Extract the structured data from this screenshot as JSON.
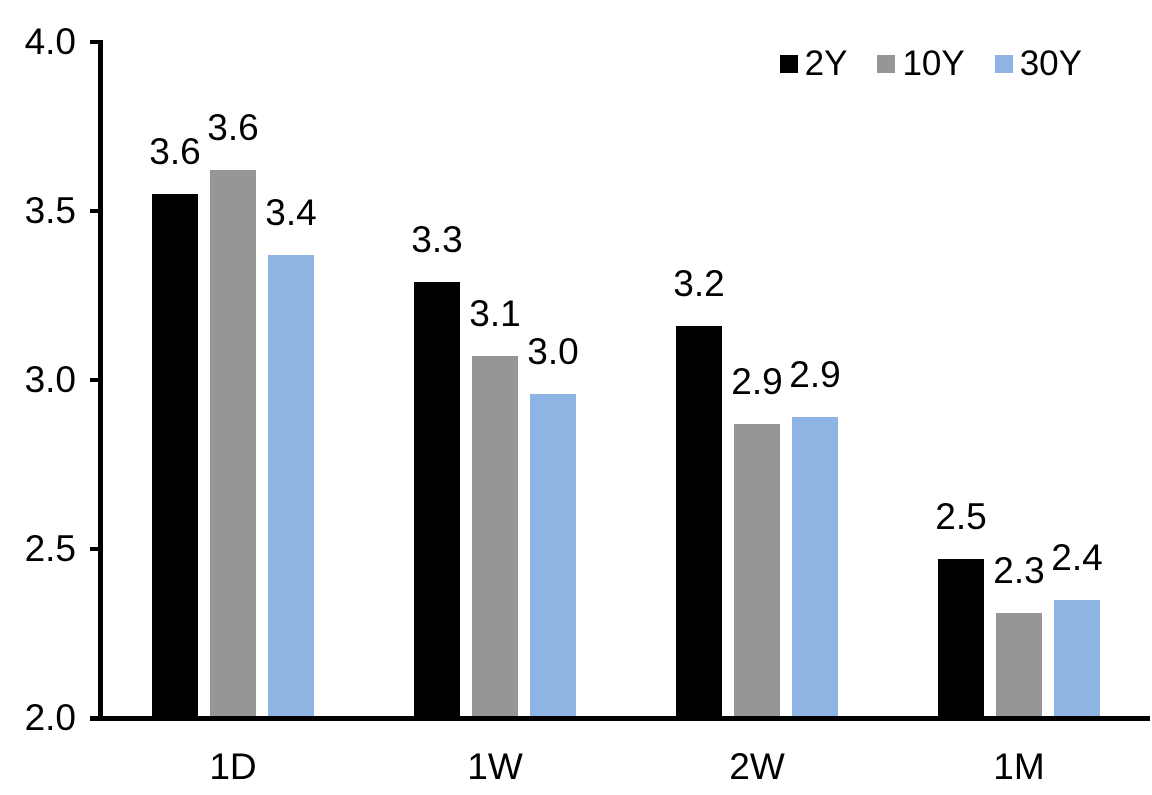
{
  "chart_data": {
    "type": "bar",
    "title": "",
    "xlabel": "",
    "ylabel": "",
    "categories": [
      "1D",
      "1W",
      "2W",
      "1M"
    ],
    "series": [
      {
        "name": "2Y",
        "color": "#000000",
        "values": [
          3.55,
          3.29,
          3.16,
          2.47
        ],
        "labels": [
          "3.6",
          "3.3",
          "3.2",
          "2.5"
        ]
      },
      {
        "name": "10Y",
        "color": "#969696",
        "values": [
          3.62,
          3.07,
          2.87,
          2.31
        ],
        "labels": [
          "3.6",
          "3.1",
          "2.9",
          "2.3"
        ]
      },
      {
        "name": "30Y",
        "color": "#8DB4E2",
        "values": [
          3.37,
          2.96,
          2.89,
          2.35
        ],
        "labels": [
          "3.4",
          "3.0",
          "2.9",
          "2.4"
        ]
      }
    ],
    "y_axis": {
      "min": 2.0,
      "max": 4.0,
      "step": 0.5,
      "tick_labels": [
        "4.0",
        "3.5",
        "3.0",
        "2.5",
        "2.0"
      ]
    },
    "legend_position": "top-right",
    "grid": false,
    "data_labels_shown": true
  },
  "colors": {
    "axis": "#000000",
    "text": "#000000",
    "background": "#ffffff"
  }
}
